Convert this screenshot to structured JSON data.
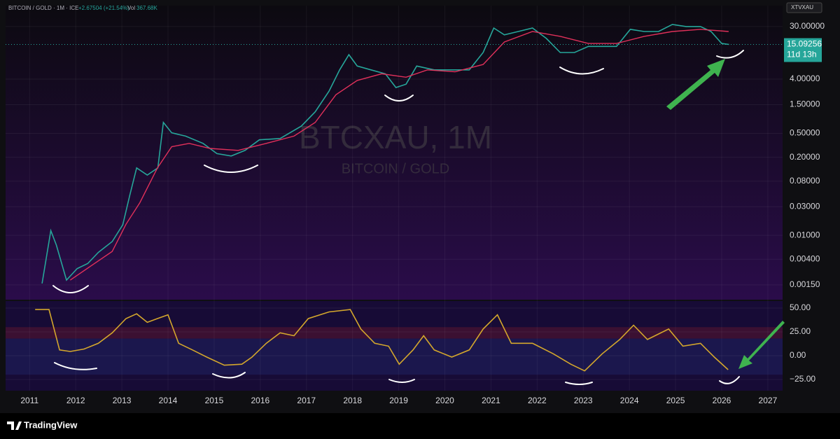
{
  "header": {
    "symbol": "BITCOIN / GOLD · 1M · ICE",
    "change": "+2.67504 (+21.54%)",
    "vol_label": "Vol",
    "vol": "367.68K",
    "ticker": "XTVXAU"
  },
  "watermark": {
    "title": "BTCXAU, 1M",
    "subtitle": "BITCOIN / GOLD"
  },
  "footer": {
    "brand": "TradingView"
  },
  "chart_data": [
    {
      "type": "line",
      "log_scale": true,
      "grid": true,
      "xlim": [
        2010.48,
        2027.32
      ],
      "ylim": [
        0.00085,
        67
      ],
      "yticks": [
        {
          "value": 30,
          "label": "30.00000"
        },
        {
          "value": 4,
          "label": "4.00000"
        },
        {
          "value": 1.5,
          "label": "1.50000"
        },
        {
          "value": 0.5,
          "label": "0.50000"
        },
        {
          "value": 0.2,
          "label": "0.20000"
        },
        {
          "value": 0.08,
          "label": "0.08000"
        },
        {
          "value": 0.03,
          "label": "0.03000"
        },
        {
          "value": 0.01,
          "label": "0.01000"
        },
        {
          "value": 0.004,
          "label": "0.00400"
        },
        {
          "value": 0.0015,
          "label": "0.00150"
        }
      ],
      "last_price": {
        "value": 15.09256,
        "label": "15.09256"
      },
      "countdown": "11d 13h",
      "series": [
        {
          "color": "#26a69a",
          "x": [
            2011.27,
            2011.46,
            2011.58,
            2011.8,
            2012.03,
            2012.26,
            2012.49,
            2012.79,
            2013.02,
            2013.17,
            2013.32,
            2013.55,
            2013.78,
            2013.9,
            2014.08,
            2014.38,
            2014.76,
            2015.06,
            2015.37,
            2015.67,
            2015.98,
            2016.43,
            2016.89,
            2017.19,
            2017.49,
            2017.72,
            2017.92,
            2018.1,
            2018.4,
            2018.71,
            2018.94,
            2019.16,
            2019.39,
            2019.77,
            2020.15,
            2020.53,
            2020.83,
            2021.06,
            2021.29,
            2021.59,
            2021.9,
            2022.2,
            2022.5,
            2022.81,
            2023.11,
            2023.41,
            2023.72,
            2024.02,
            2024.32,
            2024.63,
            2024.93,
            2025.23,
            2025.54,
            2025.77,
            2026.0,
            2026.16
          ],
          "values": [
            0.00158,
            0.012,
            0.0069,
            0.0018,
            0.0028,
            0.0034,
            0.0052,
            0.0079,
            0.015,
            0.046,
            0.133,
            0.101,
            0.133,
            0.76,
            0.51,
            0.45,
            0.34,
            0.23,
            0.21,
            0.26,
            0.39,
            0.41,
            0.66,
            1.14,
            2.53,
            5.7,
            10.2,
            6.6,
            5.7,
            4.9,
            2.9,
            3.3,
            6.6,
            5.7,
            5.7,
            5.7,
            11.1,
            28.4,
            21.8,
            24.8,
            28.4,
            19,
            11.1,
            11.1,
            14.0,
            14.0,
            14.0,
            27,
            24.8,
            24.8,
            32.5,
            30,
            30,
            24.8,
            15.7,
            15.1
          ]
        },
        {
          "color": "#e0305a",
          "x": [
            2011.88,
            2012.33,
            2012.79,
            2013.09,
            2013.39,
            2013.77,
            2014.08,
            2014.46,
            2014.91,
            2015.52,
            2016.13,
            2016.73,
            2017.19,
            2017.64,
            2018.1,
            2018.63,
            2019.16,
            2019.62,
            2020.22,
            2020.83,
            2021.29,
            2021.9,
            2022.5,
            2023.11,
            2023.72,
            2024.32,
            2024.93,
            2025.54,
            2026.15
          ],
          "values": [
            0.0018,
            0.0031,
            0.0054,
            0.0153,
            0.035,
            0.133,
            0.3,
            0.34,
            0.28,
            0.26,
            0.34,
            0.45,
            0.76,
            2.2,
            3.8,
            4.9,
            4.3,
            5.7,
            5.3,
            7.0,
            16.6,
            24.8,
            20.6,
            15.7,
            15.7,
            20.6,
            24.8,
            27,
            24.8
          ]
        }
      ]
    },
    {
      "type": "line",
      "grid": true,
      "xlim": [
        2010.48,
        2027.32
      ],
      "ylim": [
        -36.8,
        57.4
      ],
      "xticks": [
        2011,
        2012,
        2013,
        2014,
        2015,
        2016,
        2017,
        2018,
        2019,
        2020,
        2021,
        2022,
        2023,
        2024,
        2025,
        2026,
        2027
      ],
      "yticks": [
        {
          "value": 50,
          "label": "50.00"
        },
        {
          "value": 25,
          "label": "25.00"
        },
        {
          "value": 0,
          "label": "0.00"
        },
        {
          "value": -25,
          "label": "−25.00"
        }
      ],
      "upper_band": [
        18,
        30
      ],
      "lower_band": [
        -20,
        18
      ],
      "series": [
        {
          "color": "#d4a72c",
          "x": [
            2011.12,
            2011.42,
            2011.65,
            2011.88,
            2012.18,
            2012.49,
            2012.79,
            2013.09,
            2013.32,
            2013.55,
            2013.77,
            2014.0,
            2014.23,
            2014.53,
            2014.84,
            2015.22,
            2015.6,
            2015.82,
            2016.13,
            2016.43,
            2016.73,
            2017.04,
            2017.49,
            2017.95,
            2018.18,
            2018.48,
            2018.78,
            2019.01,
            2019.31,
            2019.54,
            2019.77,
            2020.15,
            2020.53,
            2020.83,
            2021.14,
            2021.44,
            2021.9,
            2022.35,
            2022.73,
            2023.03,
            2023.41,
            2023.79,
            2024.09,
            2024.39,
            2024.85,
            2025.16,
            2025.54,
            2025.84,
            2026.14
          ],
          "values": [
            48.5,
            48.5,
            6,
            4.4,
            7,
            13,
            24,
            39,
            44,
            35,
            39,
            43,
            13,
            6,
            -1.5,
            -10,
            -9,
            -1.5,
            13,
            24,
            21,
            39,
            46,
            48.5,
            28,
            13,
            10,
            -9,
            6,
            21,
            6,
            -1.5,
            6,
            28,
            43,
            13,
            13,
            2,
            -9,
            -16,
            2,
            17,
            32,
            17,
            28,
            10,
            13,
            -1.5,
            -14.7
          ]
        }
      ]
    }
  ]
}
